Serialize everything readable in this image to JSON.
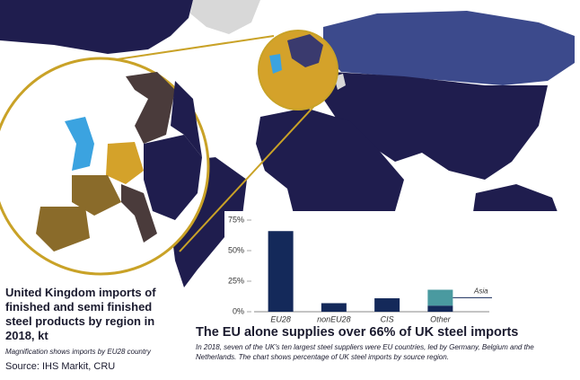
{
  "chart_data": {
    "type": "bar",
    "title": "The EU alone supplies over 66% of UK steel imports",
    "subtitle": "In 2018, seven of the UK's ten largest steel suppliers were EU countries, led by Germany, Belgium and the Netherlands. The chart shows percentage of UK steel imports by source region.",
    "categories": [
      "EU28",
      "nonEU28",
      "CIS",
      "Other"
    ],
    "series": [
      {
        "color": "#14295a",
        "values": [
          66,
          7,
          11,
          5
        ]
      },
      {
        "name": "Asia",
        "color": "#4a9aa0",
        "values": [
          null,
          null,
          null,
          13
        ]
      }
    ],
    "ylim": [
      0,
      75
    ],
    "yticks": [
      {
        "value": 0,
        "label": "0%"
      },
      {
        "value": 25,
        "label": "25%"
      },
      {
        "value": 50,
        "label": "50%"
      },
      {
        "value": 75,
        "label": "75%"
      }
    ]
  },
  "map": {
    "caption": "United Kingdom imports of finished and semi finished steel products by region in 2018, kt",
    "note": "Magnification shows imports by EU28 country",
    "source": "Source: IHS Markit, CRU"
  }
}
